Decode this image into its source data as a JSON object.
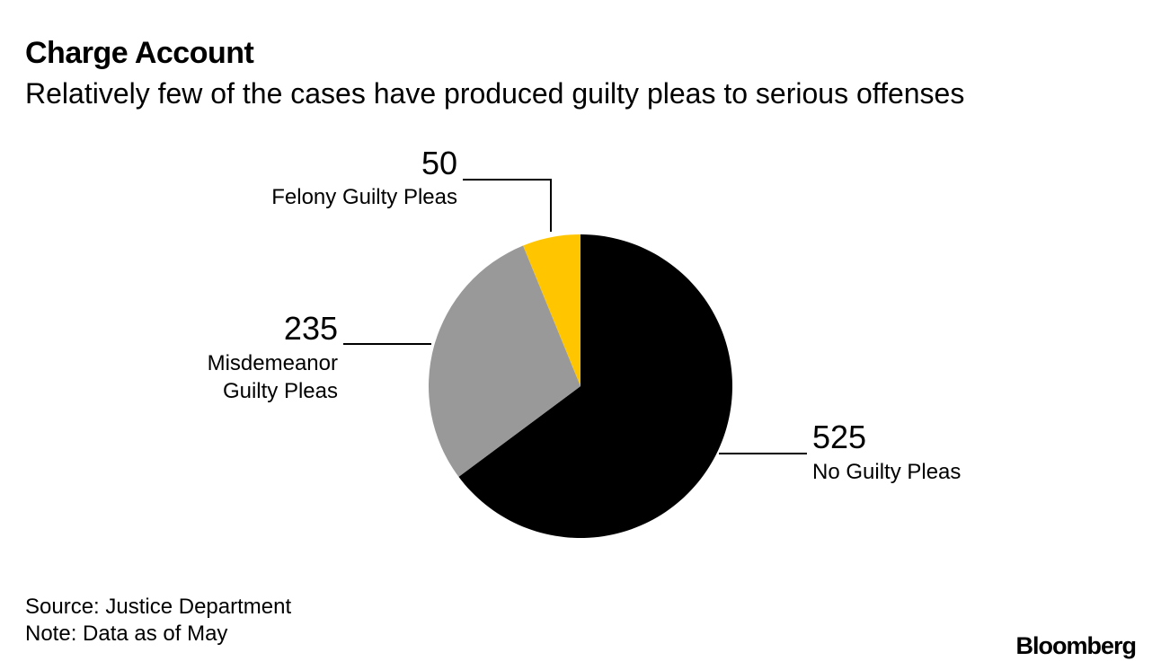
{
  "title": "Charge Account",
  "subtitle": "Relatively few of the cases have produced guilty pleas to serious offenses",
  "chart_data": {
    "type": "pie",
    "slices": [
      {
        "label": "No Guilty Pleas",
        "value": 525,
        "value_text": "525",
        "color": "#000000"
      },
      {
        "label": "Misdemeanor Guilty Pleas",
        "label_lines": [
          "Misdemeanor",
          "Guilty Pleas"
        ],
        "value": 235,
        "value_text": "235",
        "color": "#999999"
      },
      {
        "label": "Felony Guilty Pleas",
        "value": 50,
        "value_text": "50",
        "color": "#FFC600"
      }
    ],
    "start": "12 o'clock",
    "direction": "clockwise"
  },
  "footer": {
    "source": "Source: Justice Department",
    "note": "Note: Data as of May"
  },
  "logo": "Bloomberg"
}
